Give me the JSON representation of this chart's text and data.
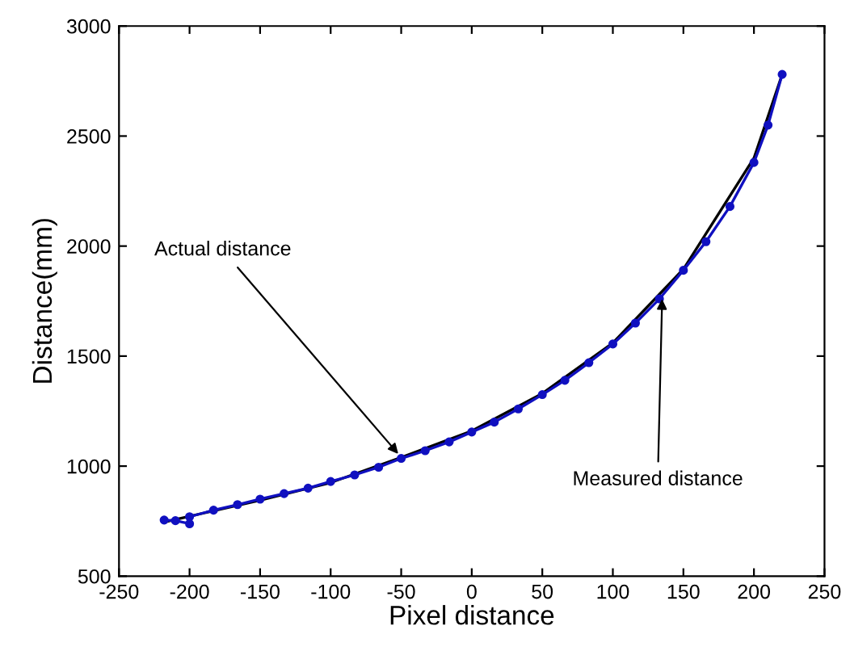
{
  "chart_data": {
    "type": "line",
    "xlabel": "Pixel distance",
    "ylabel": "Distance(mm)",
    "xlim": [
      -250,
      250
    ],
    "xticks": [
      -250,
      -200,
      -150,
      -100,
      -50,
      0,
      50,
      100,
      150,
      200,
      250
    ],
    "ylim": [
      500,
      3000
    ],
    "yticks": [
      500,
      1000,
      1500,
      2000,
      2500,
      3000
    ],
    "grid": false,
    "legend": false,
    "series": [
      {
        "color": "#000000",
        "marker": "none",
        "x": [
          -215,
          -150,
          -100,
          -50,
          0,
          50,
          100,
          150,
          200,
          220
        ],
        "values": [
          750,
          845,
          925,
          1040,
          1160,
          1330,
          1560,
          1895,
          2400,
          2780
        ]
      },
      {
        "color": "#1010c0",
        "marker": "circle",
        "x": [
          -218,
          -210,
          -200,
          -200,
          -183,
          -166,
          -150,
          -133,
          -116,
          -100,
          -83,
          -66,
          -50,
          -33,
          -16,
          0,
          16,
          33,
          50,
          66,
          83,
          100,
          116,
          133,
          150,
          166,
          183,
          200,
          210,
          220
        ],
        "values": [
          755,
          752,
          738,
          770,
          800,
          825,
          850,
          875,
          900,
          930,
          960,
          995,
          1035,
          1070,
          1110,
          1155,
          1200,
          1260,
          1325,
          1390,
          1470,
          1555,
          1650,
          1760,
          1890,
          2020,
          2180,
          2380,
          2550,
          2780
        ]
      }
    ],
    "annotations": [
      {
        "text": "Actual distance",
        "x": -50,
        "y": 1040
      },
      {
        "text": "Measured distance",
        "x": 135,
        "y": 1780
      }
    ]
  }
}
